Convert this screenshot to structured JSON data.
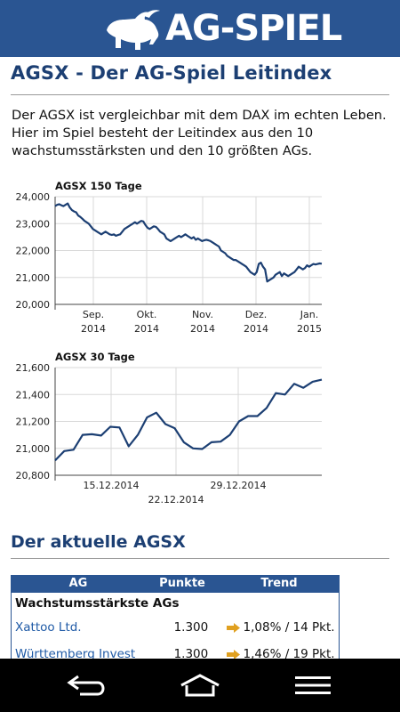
{
  "app": {
    "logo_text": "AG-SPIEL"
  },
  "page": {
    "title": "AGSX - Der AG-Spiel Leitindex",
    "intro": "Der AGSX ist vergleichbar mit dem DAX im echten Leben. Hier im Spiel besteht der Leitindex aus den 10 wachstumsstärksten und den 10 größten AGs.",
    "section_title": "Der aktuelle AGSX"
  },
  "chart_data": [
    {
      "type": "line",
      "title": "AGSX 150 Tage",
      "x_ticks": [
        "Sep.\n2014",
        "Okt.\n2014",
        "Nov.\n2014",
        "Dez.\n2014",
        "Jan.\n2015"
      ],
      "y_ticks": [
        "24,000",
        "23,000",
        "22,000",
        "21,000",
        "20,000"
      ],
      "ylim": [
        20000,
        24000
      ],
      "y": [
        23650,
        23700,
        23720,
        23680,
        23650,
        23700,
        23750,
        23600,
        23500,
        23450,
        23420,
        23300,
        23250,
        23180,
        23100,
        23050,
        23000,
        22900,
        22800,
        22750,
        22700,
        22650,
        22600,
        22650,
        22700,
        22650,
        22600,
        22580,
        22600,
        22550,
        22580,
        22600,
        22700,
        22800,
        22850,
        22900,
        22950,
        23000,
        23050,
        23000,
        23050,
        23100,
        23080,
        22950,
        22850,
        22800,
        22850,
        22900,
        22880,
        22800,
        22700,
        22650,
        22600,
        22450,
        22400,
        22350,
        22400,
        22450,
        22500,
        22550,
        22500,
        22550,
        22600,
        22550,
        22500,
        22450,
        22500,
        22400,
        22450,
        22400,
        22350,
        22380,
        22400,
        22380,
        22350,
        22300,
        22250,
        22200,
        22150,
        22000,
        21950,
        21900,
        21800,
        21750,
        21700,
        21650,
        21650,
        21600,
        21550,
        21500,
        21450,
        21400,
        21300,
        21200,
        21150,
        21100,
        21200,
        21500,
        21550,
        21400,
        21300,
        20850,
        20900,
        20950,
        21000,
        21100,
        21150,
        21200,
        21050,
        21150,
        21100,
        21050,
        21100,
        21150,
        21200,
        21300,
        21400,
        21350,
        21300,
        21350,
        21450,
        21400,
        21450,
        21500,
        21480,
        21500,
        21520,
        21510
      ]
    },
    {
      "type": "line",
      "title": "AGSX 30 Tage",
      "x_ticks": [
        "15.12.2014",
        "22.12.2014",
        "29.12.2014"
      ],
      "y_ticks": [
        "21,600",
        "21,400",
        "21,200",
        "21,000",
        "20,800"
      ],
      "ylim": [
        20800,
        21600
      ],
      "y": [
        20910,
        20980,
        20990,
        21100,
        21105,
        21095,
        21160,
        21155,
        21015,
        21100,
        21230,
        21265,
        21180,
        21150,
        21045,
        21000,
        20995,
        21045,
        21050,
        21100,
        21200,
        21240,
        21240,
        21300,
        21410,
        21400,
        21480,
        21450,
        21495,
        21510
      ]
    }
  ],
  "table": {
    "headers": [
      "AG",
      "Punkte",
      "Trend"
    ],
    "group_label": "Wachstumsstärkste AGs",
    "rows": [
      {
        "name": "Xattoo Ltd.",
        "points": "1.300",
        "trend": "1,08% / 14 Pkt."
      },
      {
        "name": "Württemberg Invest",
        "points": "1.300",
        "trend": "1,46% / 19 Pkt."
      }
    ],
    "trend_color": "#e0a020"
  },
  "nav": {
    "icons": [
      "back-icon",
      "home-icon",
      "menu-icon"
    ]
  },
  "colors": {
    "header": "#2a5592",
    "title": "#1c3f73",
    "line": "#1c3f73",
    "link": "#1f5aa6"
  }
}
